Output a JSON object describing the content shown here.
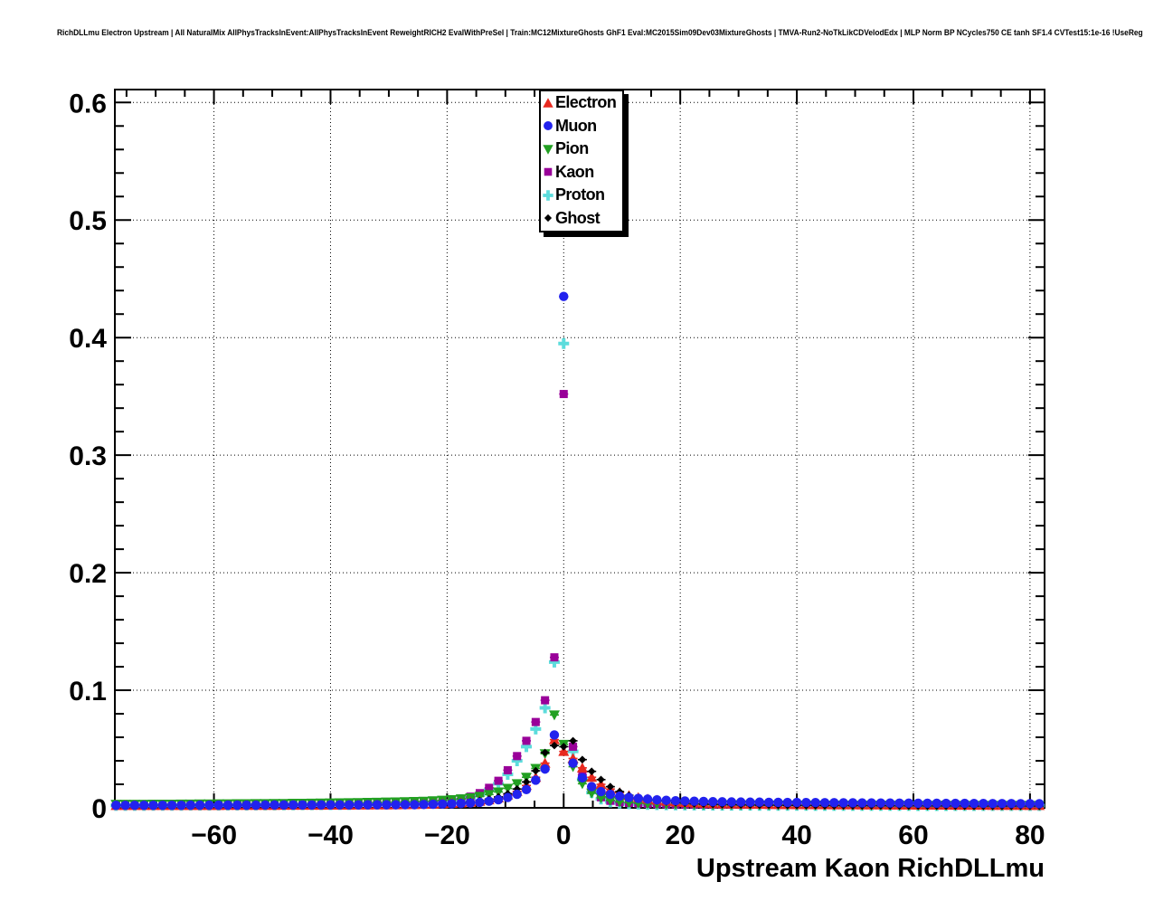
{
  "chart_data": {
    "type": "scatter",
    "title": "RichDLLmu Electron Upstream | All NaturalMix AllPhysTracksInEvent:AllPhysTracksInEvent ReweightRICH2 EvalWithPreSel | Train:MC12MixtureGhosts GhF1 Eval:MC2015Sim09Dev03MixtureGhosts | TMVA-Run2-NoTkLikCDVelodEdx | MLP Norm BP NCycles750 CE tanh SF1.4 CVTest15:1e-16 !UseReg",
    "xlabel": "Upstream Kaon RichDLLmu",
    "ylabel": "",
    "xlim": [
      -77,
      82.5
    ],
    "ylim": [
      0,
      0.611
    ],
    "grid": "dotted",
    "legend_position": "top-center",
    "x_ticks": [
      {
        "v": -60,
        "label": "−60"
      },
      {
        "v": -40,
        "label": "−40"
      },
      {
        "v": -20,
        "label": "−20"
      },
      {
        "v": 0,
        "label": "0"
      },
      {
        "v": 20,
        "label": "20"
      },
      {
        "v": 40,
        "label": "40"
      },
      {
        "v": 60,
        "label": "60"
      },
      {
        "v": 80,
        "label": "80"
      }
    ],
    "x_minor_step": 5,
    "y_ticks": [
      {
        "v": 0,
        "label": "0"
      },
      {
        "v": 0.1,
        "label": "0.1"
      },
      {
        "v": 0.2,
        "label": "0.2"
      },
      {
        "v": 0.3,
        "label": "0.3"
      },
      {
        "v": 0.4,
        "label": "0.4"
      },
      {
        "v": 0.5,
        "label": "0.5"
      },
      {
        "v": 0.6,
        "label": "0.6"
      }
    ],
    "y_minor_step": 0.02,
    "draw_order": [
      "Proton",
      "Kaon",
      "Pion",
      "Electron",
      "Ghost",
      "Muon"
    ],
    "x": [
      -76.8,
      -75.2,
      -73.6,
      -72,
      -70.4,
      -68.8,
      -67.2,
      -65.6,
      -64,
      -62.4,
      -60.8,
      -59.2,
      -57.6,
      -56,
      -54.4,
      -52.8,
      -51.2,
      -49.6,
      -48,
      -46.4,
      -44.8,
      -43.2,
      -41.6,
      -40,
      -38.4,
      -36.8,
      -35.2,
      -33.6,
      -32,
      -30.4,
      -28.8,
      -27.2,
      -25.6,
      -24,
      -22.4,
      -20.8,
      -19.2,
      -17.6,
      -16,
      -14.4,
      -12.8,
      -11.2,
      -9.6,
      -8,
      -6.4,
      -4.8,
      -3.2,
      -1.6,
      0,
      1.6,
      3.2,
      4.8,
      6.4,
      8,
      9.6,
      11.2,
      12.8,
      14.4,
      16,
      17.6,
      19.2,
      20.8,
      22.4,
      24,
      25.6,
      27.2,
      28.8,
      30.4,
      32,
      33.6,
      35.2,
      36.8,
      38.4,
      40,
      41.6,
      43.2,
      44.8,
      46.4,
      48,
      49.6,
      51.2,
      52.8,
      54.4,
      56,
      57.6,
      59.2,
      60.8,
      62.4,
      64,
      65.6,
      67.2,
      68.8,
      70.4,
      72,
      73.6,
      75.2,
      76.8,
      78.4,
      80,
      81.6
    ],
    "series": [
      {
        "name": "Electron",
        "marker": "triangle-up",
        "color": "#e8291f",
        "values": [
          0.002,
          0.002,
          0.002,
          0.002,
          0.002,
          0.002,
          0.002,
          0.002,
          0.002,
          0.002,
          0.002,
          0.002,
          0.0021,
          0.0021,
          0.0021,
          0.0021,
          0.0021,
          0.0021,
          0.0022,
          0.0022,
          0.0022,
          0.0022,
          0.0022,
          0.0023,
          0.0023,
          0.0023,
          0.0024,
          0.0024,
          0.0025,
          0.0025,
          0.0026,
          0.0027,
          0.0028,
          0.003,
          0.0032,
          0.0035,
          0.0038,
          0.0042,
          0.0048,
          0.0056,
          0.0068,
          0.0085,
          0.011,
          0.014,
          0.019,
          0.026,
          0.038,
          0.058,
          0.048,
          0.042,
          0.034,
          0.026,
          0.02,
          0.016,
          0.013,
          0.0105,
          0.0088,
          0.0075,
          0.0065,
          0.0057,
          0.0051,
          0.0046,
          0.0042,
          0.0039,
          0.0037,
          0.0035,
          0.0034,
          0.0033,
          0.0032,
          0.0031,
          0.003,
          0.0029,
          0.0029,
          0.0028,
          0.0028,
          0.0027,
          0.0027,
          0.0026,
          0.0026,
          0.0026,
          0.0025,
          0.0025,
          0.0025,
          0.0024,
          0.0024,
          0.0024,
          0.0023,
          0.0023,
          0.0023,
          0.0023,
          0.0022,
          0.0022,
          0.0022,
          0.0022,
          0.0021,
          0.0021,
          0.0021,
          0.0021,
          0.002,
          0.002
        ]
      },
      {
        "name": "Muon",
        "marker": "circle",
        "color": "#2222ee",
        "values": [
          0.0022,
          0.0022,
          0.0022,
          0.0022,
          0.0022,
          0.0022,
          0.0022,
          0.0022,
          0.0023,
          0.0023,
          0.0023,
          0.0023,
          0.0023,
          0.0023,
          0.0023,
          0.0023,
          0.0024,
          0.0024,
          0.0024,
          0.0024,
          0.0024,
          0.0024,
          0.0025,
          0.0025,
          0.0025,
          0.0025,
          0.0025,
          0.0026,
          0.0026,
          0.0026,
          0.0026,
          0.0027,
          0.0027,
          0.0028,
          0.003,
          0.0032,
          0.0034,
          0.0037,
          0.0041,
          0.0047,
          0.0056,
          0.0069,
          0.0088,
          0.0115,
          0.0155,
          0.0235,
          0.033,
          0.062,
          0.435,
          0.038,
          0.0255,
          0.018,
          0.0138,
          0.0115,
          0.0099,
          0.0088,
          0.008,
          0.0074,
          0.0068,
          0.0064,
          0.006,
          0.0058,
          0.0056,
          0.0054,
          0.0052,
          0.0051,
          0.005,
          0.0049,
          0.0048,
          0.0048,
          0.0047,
          0.0047,
          0.0046,
          0.0046,
          0.0045,
          0.0045,
          0.0044,
          0.0044,
          0.0043,
          0.0043,
          0.0042,
          0.0042,
          0.0041,
          0.0041,
          0.004,
          0.004,
          0.0039,
          0.0039,
          0.0039,
          0.0038,
          0.0038,
          0.0038,
          0.0037,
          0.0037,
          0.0036,
          0.0036,
          0.0036,
          0.0035,
          0.0035,
          0.0035
        ]
      },
      {
        "name": "Pion",
        "marker": "triangle-down",
        "color": "#22a022",
        "values": [
          0.003,
          0.003,
          0.003,
          0.003,
          0.0031,
          0.0031,
          0.0031,
          0.0032,
          0.0032,
          0.0033,
          0.0033,
          0.0034,
          0.0034,
          0.0035,
          0.0035,
          0.0036,
          0.0036,
          0.0037,
          0.0037,
          0.0038,
          0.0038,
          0.0039,
          0.004,
          0.0041,
          0.0042,
          0.0043,
          0.0044,
          0.0046,
          0.0047,
          0.0049,
          0.005,
          0.0052,
          0.0054,
          0.0056,
          0.006,
          0.0064,
          0.0069,
          0.0076,
          0.0085,
          0.0097,
          0.0113,
          0.0135,
          0.0165,
          0.0205,
          0.026,
          0.0335,
          0.046,
          0.079,
          0.054,
          0.035,
          0.0205,
          0.0125,
          0.0085,
          0.0063,
          0.0051,
          0.0044,
          0.0039,
          0.0035,
          0.0032,
          0.003,
          0.0029,
          0.0028,
          0.0027,
          0.0026,
          0.0026,
          0.0025,
          0.0025,
          0.0024,
          0.0024,
          0.0024,
          0.0023,
          0.0023,
          0.0023,
          0.0023,
          0.0022,
          0.0022,
          0.0022,
          0.0022,
          0.0022,
          0.0021,
          0.0021,
          0.0021,
          0.0021,
          0.0021,
          0.0021,
          0.002,
          0.002,
          0.002,
          0.002,
          0.002,
          0.002,
          0.002,
          0.002,
          0.002,
          0.002,
          0.002,
          0.002,
          0.002,
          0.002,
          0.002
        ]
      },
      {
        "name": "Kaon",
        "marker": "square",
        "color": "#990099",
        "values": [
          0.002,
          0.002,
          0.0021,
          0.0021,
          0.0021,
          0.0022,
          0.0022,
          0.0022,
          0.0022,
          0.0023,
          0.0023,
          0.0023,
          0.0024,
          0.0024,
          0.0024,
          0.0025,
          0.0025,
          0.0026,
          0.0026,
          0.0027,
          0.0027,
          0.0028,
          0.0028,
          0.003,
          0.003,
          0.0031,
          0.0032,
          0.0034,
          0.0035,
          0.0037,
          0.0039,
          0.0041,
          0.0044,
          0.0048,
          0.0054,
          0.006,
          0.0068,
          0.0078,
          0.0095,
          0.0125,
          0.017,
          0.023,
          0.032,
          0.044,
          0.057,
          0.073,
          0.0915,
          0.128,
          0.352,
          0.052,
          0.028,
          0.016,
          0.009,
          0.006,
          0.0048,
          0.0042,
          0.0038,
          0.0035,
          0.0033,
          0.0031,
          0.003,
          0.0029,
          0.0029,
          0.0028,
          0.0028,
          0.0027,
          0.0027,
          0.0026,
          0.0026,
          0.0026,
          0.0025,
          0.0025,
          0.0025,
          0.0025,
          0.0024,
          0.0024,
          0.0024,
          0.0024,
          0.0023,
          0.0023,
          0.0023,
          0.0023,
          0.0023,
          0.0022,
          0.0022,
          0.0022,
          0.0022,
          0.0022,
          0.0021,
          0.0021,
          0.0021,
          0.0021,
          0.0021,
          0.0021,
          0.002,
          0.002,
          0.002,
          0.002,
          0.002,
          0.002
        ]
      },
      {
        "name": "Proton",
        "marker": "cross",
        "color": "#5cdcdc",
        "values": [
          0.002,
          0.002,
          0.002,
          0.002,
          0.0021,
          0.0021,
          0.0021,
          0.0021,
          0.0022,
          0.0022,
          0.0022,
          0.0022,
          0.0023,
          0.0023,
          0.0023,
          0.0024,
          0.0024,
          0.0024,
          0.0025,
          0.0025,
          0.0026,
          0.0026,
          0.0027,
          0.0027,
          0.0028,
          0.0028,
          0.003,
          0.003,
          0.0032,
          0.0032,
          0.0035,
          0.0036,
          0.0038,
          0.0042,
          0.0047,
          0.0053,
          0.006,
          0.0069,
          0.0083,
          0.011,
          0.015,
          0.0205,
          0.0285,
          0.04,
          0.052,
          0.067,
          0.085,
          0.124,
          0.395,
          0.048,
          0.024,
          0.013,
          0.0075,
          0.005,
          0.004,
          0.0035,
          0.0032,
          0.0029,
          0.0027,
          0.0026,
          0.0025,
          0.0024,
          0.0024,
          0.0023,
          0.0023,
          0.0022,
          0.0022,
          0.0022,
          0.0022,
          0.0021,
          0.0021,
          0.0021,
          0.0021,
          0.0021,
          0.0021,
          0.002,
          0.002,
          0.002,
          0.002,
          0.002,
          0.002,
          0.002,
          0.002,
          0.002,
          0.002,
          0.002,
          0.0019,
          0.0019,
          0.0019,
          0.0019,
          0.0019,
          0.0019,
          0.0019,
          0.0019,
          0.0019,
          0.0019,
          0.0019,
          0.0019,
          0.0019,
          0.0019
        ]
      },
      {
        "name": "Ghost",
        "marker": "diamond",
        "color": "#000000",
        "values": [
          0.002,
          0.002,
          0.002,
          0.002,
          0.002,
          0.002,
          0.002,
          0.002,
          0.0021,
          0.0021,
          0.0021,
          0.0021,
          0.0021,
          0.0021,
          0.0022,
          0.0022,
          0.0022,
          0.0022,
          0.0022,
          0.0023,
          0.0023,
          0.0023,
          0.0023,
          0.0024,
          0.0024,
          0.0024,
          0.0025,
          0.0025,
          0.0026,
          0.0026,
          0.0028,
          0.0029,
          0.003,
          0.0032,
          0.0035,
          0.0038,
          0.0042,
          0.0047,
          0.0053,
          0.0062,
          0.0075,
          0.0093,
          0.012,
          0.016,
          0.022,
          0.0315,
          0.047,
          0.053,
          0.052,
          0.057,
          0.041,
          0.031,
          0.024,
          0.018,
          0.0138,
          0.0107,
          0.0085,
          0.0069,
          0.0058,
          0.005,
          0.0044,
          0.0039,
          0.0035,
          0.0032,
          0.003,
          0.0028,
          0.0027,
          0.0025,
          0.0024,
          0.0023,
          0.0023,
          0.0022,
          0.0021,
          0.0021,
          0.002,
          0.002,
          0.0019,
          0.0019,
          0.0019,
          0.0018,
          0.0018,
          0.0018,
          0.0018,
          0.0017,
          0.0017,
          0.0017,
          0.0017,
          0.0016,
          0.0016,
          0.0016,
          0.0016,
          0.0016,
          0.0015,
          0.0015,
          0.0015,
          0.0015,
          0.0015,
          0.0015,
          0.0015,
          0.0015
        ]
      }
    ]
  }
}
